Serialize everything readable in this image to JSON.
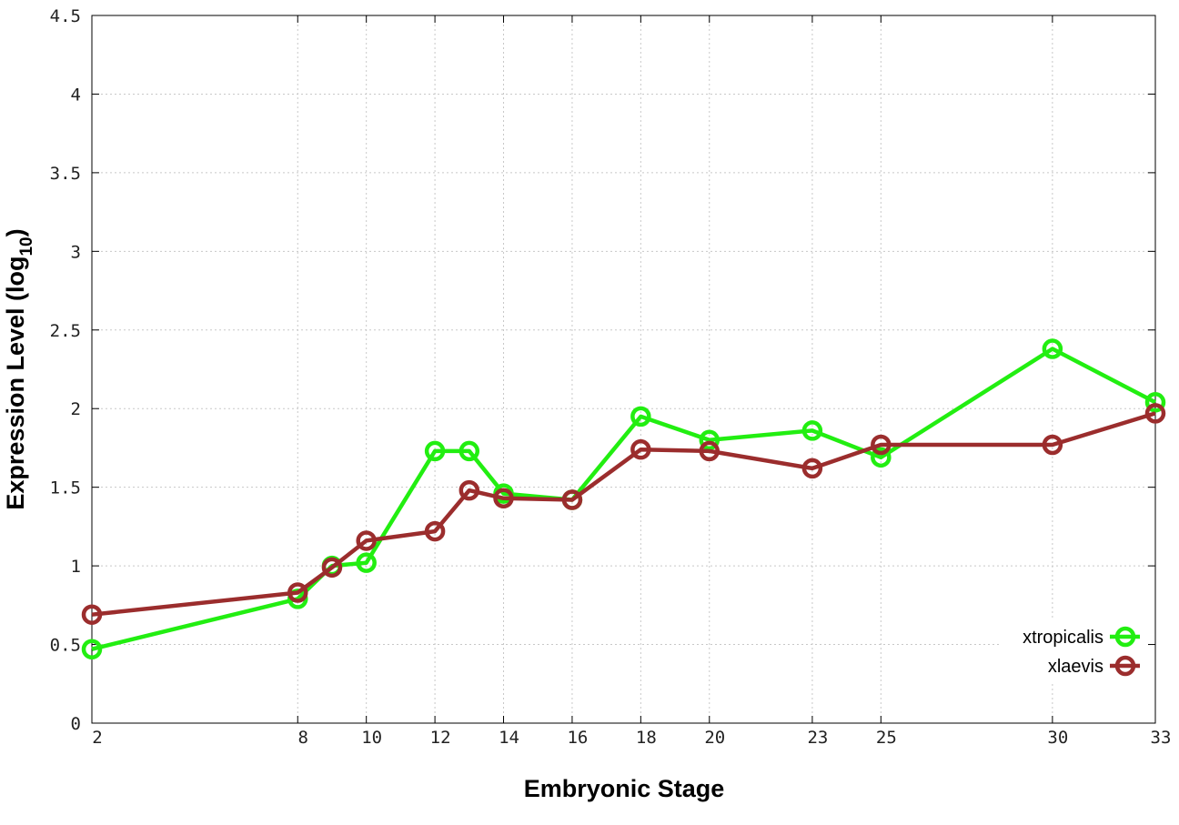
{
  "chart_data": {
    "type": "line",
    "x_ticks": [
      2,
      8,
      10,
      12,
      14,
      16,
      18,
      20,
      23,
      25,
      30,
      33
    ],
    "y_ticks": [
      "0",
      "0.5",
      "1",
      "1.5",
      "2",
      "2.5",
      "3",
      "3.5",
      "4",
      "4.5"
    ],
    "xlim": [
      2,
      33
    ],
    "ylim": [
      0,
      4.5
    ],
    "xlabel": "Embryonic Stage",
    "ylabel_main": "Expression Level (log",
    "ylabel_sub": "10",
    "ylabel_close": ")",
    "grid": true,
    "legend_position": "bottom-right",
    "series": [
      {
        "name": "xtropicalis",
        "color": "#22ee11",
        "points": [
          [
            2,
            0.47
          ],
          [
            8,
            0.79
          ],
          [
            9,
            1.0
          ],
          [
            10,
            1.02
          ],
          [
            12,
            1.73
          ],
          [
            13,
            1.73
          ],
          [
            14,
            1.46
          ],
          [
            16,
            1.42
          ],
          [
            18,
            1.95
          ],
          [
            20,
            1.8
          ],
          [
            23,
            1.86
          ],
          [
            25,
            1.69
          ],
          [
            30,
            2.38
          ],
          [
            33,
            2.04
          ]
        ]
      },
      {
        "name": "xlaevis",
        "color": "#9b2d2d",
        "points": [
          [
            2,
            0.69
          ],
          [
            8,
            0.83
          ],
          [
            9,
            0.99
          ],
          [
            10,
            1.16
          ],
          [
            12,
            1.22
          ],
          [
            13,
            1.48
          ],
          [
            14,
            1.43
          ],
          [
            16,
            1.42
          ],
          [
            18,
            1.74
          ],
          [
            20,
            1.73
          ],
          [
            23,
            1.62
          ],
          [
            25,
            1.77
          ],
          [
            30,
            1.77
          ],
          [
            33,
            1.97
          ]
        ]
      }
    ]
  }
}
